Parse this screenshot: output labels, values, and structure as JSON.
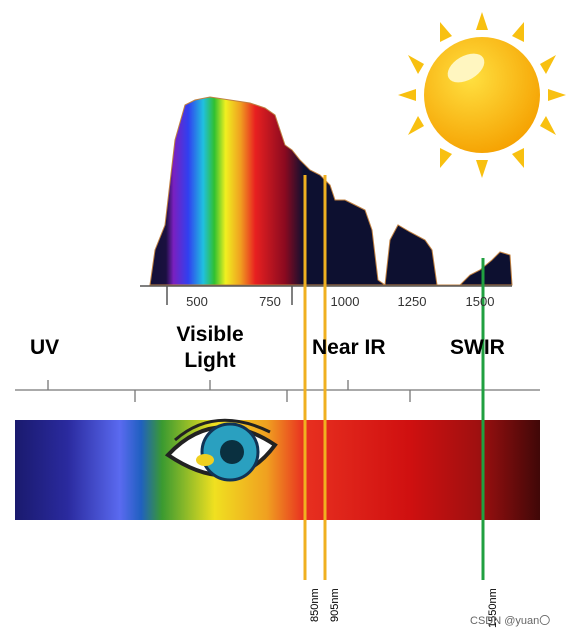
{
  "axis": {
    "ticks": [
      "500",
      "750",
      "1000",
      "1250",
      "1500"
    ]
  },
  "regions": {
    "uv": "UV",
    "visible": "Visible Light",
    "near_ir": "Near IR",
    "swir": "SWIR"
  },
  "markers": {
    "m850": "850nm",
    "m905": "905nm",
    "m1550": "1550nm"
  },
  "watermark": "CSDN @yuan〇"
}
